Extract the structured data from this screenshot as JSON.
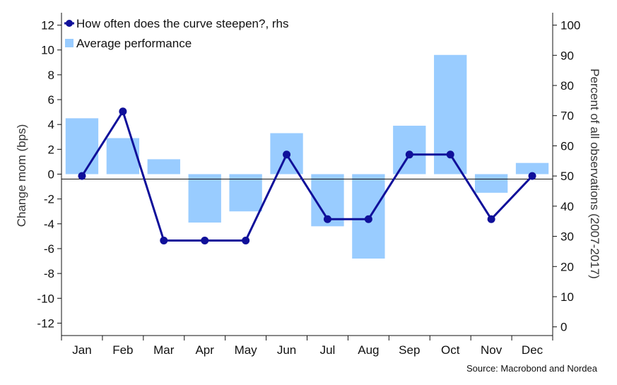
{
  "chart_data": {
    "type": "bar",
    "categories": [
      "Jan",
      "Feb",
      "Mar",
      "Apr",
      "May",
      "Jun",
      "Jul",
      "Aug",
      "Sep",
      "Oct",
      "Nov",
      "Dec"
    ],
    "series": [
      {
        "name": "Average performance",
        "type": "bar",
        "axis": "left",
        "values": [
          4.5,
          2.9,
          1.2,
          -3.9,
          -3.0,
          3.3,
          -4.2,
          -6.8,
          3.9,
          9.6,
          -1.5,
          0.9
        ],
        "color": "#99ccff"
      },
      {
        "name": "How often does the curve steepen?, rhs",
        "type": "line",
        "axis": "right",
        "values": [
          50,
          71.4,
          28.6,
          28.6,
          28.6,
          57.1,
          35.7,
          35.7,
          57.1,
          57.1,
          35.7,
          50
        ],
        "color": "#10109a"
      }
    ],
    "ylabel": "Change mom (bps)",
    "y2label": "Percent of all observations (2007-2017)",
    "ylim": [
      -13,
      13
    ],
    "yticks": [
      12,
      10,
      8,
      6,
      4,
      2,
      0,
      -2,
      -4,
      -6,
      -8,
      -10,
      -12
    ],
    "y2lim": [
      0,
      100
    ],
    "y2ticks": [
      100,
      90,
      80,
      70,
      60,
      50,
      40,
      30,
      20,
      10,
      0
    ],
    "legend_position": "top-left",
    "grid": false,
    "source": "Source: Macrobond and Nordea"
  }
}
